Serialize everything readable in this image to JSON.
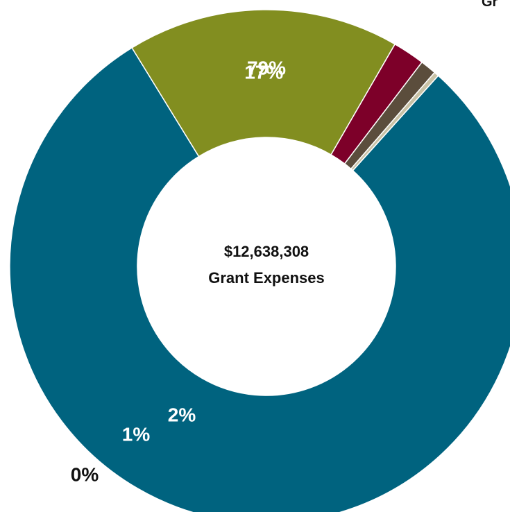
{
  "header": {
    "title_fragment": "Gr"
  },
  "chart_data": {
    "type": "pie",
    "variant": "donut",
    "center_label": {
      "amount": "$12,638,308",
      "caption": "Grant Expenses"
    },
    "slices": [
      {
        "value": 79,
        "label": "79%",
        "color": "#00637F",
        "label_color": "#FFFFFF"
      },
      {
        "value": 17,
        "label": "17%",
        "color": "#828E20",
        "label_color": "#FFFFFF"
      },
      {
        "value": 2,
        "label": "2%",
        "color": "#7D0029",
        "label_color": "#FFFFFF"
      },
      {
        "value": 1,
        "label": "1%",
        "color": "#5B4D3C",
        "label_color": "#FFFFFF"
      },
      {
        "value": 0.3,
        "label": "0%",
        "color": "#C9C2A6",
        "label_color": "#111111"
      }
    ]
  }
}
